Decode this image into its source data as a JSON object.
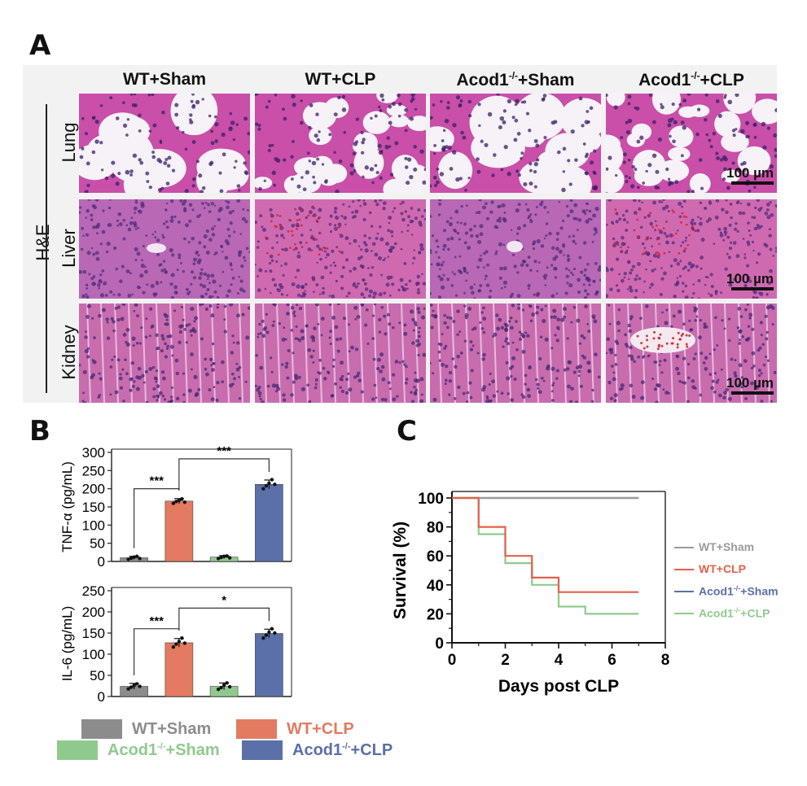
{
  "panels": {
    "a": "A",
    "b": "B",
    "c": "C"
  },
  "panel_a": {
    "stain_label": "H&E",
    "columns": [
      {
        "pre": "WT+Sham",
        "sup": "",
        "post": ""
      },
      {
        "pre": "WT+CLP",
        "sup": "",
        "post": ""
      },
      {
        "pre": "Acod1",
        "sup": "-/-",
        "post": "+Sham"
      },
      {
        "pre": "Acod1",
        "sup": "-/-",
        "post": "+CLP"
      }
    ],
    "rows": [
      "Lung",
      "Liver",
      "Kidney"
    ],
    "scale_bar_label": "100 µm"
  },
  "panel_b_legend": [
    {
      "pre": "WT+Sham",
      "sup": "",
      "post": "",
      "color": "#8c8c8c",
      "text_color": "#8c8c8c"
    },
    {
      "pre": "WT+CLP",
      "sup": "",
      "post": "",
      "color": "#e27b5f",
      "text_color": "#e27b5f"
    },
    {
      "pre": "Acod1",
      "sup": "-/-",
      "post": "+Sham",
      "color": "#8fca8c",
      "text_color": "#8fca8c"
    },
    {
      "pre": "Acod1",
      "sup": "-/-",
      "post": "+CLP",
      "color": "#5b6fa8",
      "text_color": "#5b6fa8"
    }
  ],
  "chart_data": [
    {
      "type": "bar",
      "ylabel": "TNF-α (pg/mL)",
      "categories": [
        "WT+Sham",
        "WT+CLP",
        "Acod1-/-+Sham",
        "Acod1-/-+CLP"
      ],
      "values": [
        10,
        166,
        12,
        212
      ],
      "errors": [
        4,
        7,
        4,
        12
      ],
      "points": [
        [
          6,
          9,
          12,
          14,
          8
        ],
        [
          160,
          165,
          168,
          172,
          163
        ],
        [
          8,
          11,
          14,
          15,
          10
        ],
        [
          200,
          208,
          215,
          225,
          212
        ]
      ],
      "colors": [
        "#8c8c8c",
        "#e27b5f",
        "#8fca8c",
        "#5b6fa8"
      ],
      "ylim": [
        0,
        300
      ],
      "yticks": [
        0,
        50,
        100,
        150,
        200,
        250,
        300
      ],
      "significance": [
        {
          "from": 0,
          "to": 1,
          "label": "***"
        },
        {
          "from": 1,
          "to": 3,
          "label": "***"
        }
      ]
    },
    {
      "type": "bar",
      "ylabel": "IL-6 (pg/mL)",
      "categories": [
        "WT+Sham",
        "WT+CLP",
        "Acod1-/-+Sham",
        "Acod1-/-+CLP"
      ],
      "values": [
        24,
        127,
        24,
        149
      ],
      "errors": [
        7,
        10,
        8,
        10
      ],
      "points": [
        [
          18,
          22,
          26,
          30,
          24
        ],
        [
          117,
          124,
          130,
          138,
          126
        ],
        [
          17,
          21,
          27,
          32,
          23
        ],
        [
          138,
          145,
          152,
          160,
          150
        ]
      ],
      "colors": [
        "#8c8c8c",
        "#e27b5f",
        "#8fca8c",
        "#5b6fa8"
      ],
      "ylim": [
        0,
        250
      ],
      "yticks": [
        0,
        50,
        100,
        150,
        200,
        250
      ],
      "significance": [
        {
          "from": 0,
          "to": 1,
          "label": "***"
        },
        {
          "from": 1,
          "to": 3,
          "label": "*"
        }
      ]
    },
    {
      "type": "line",
      "step": true,
      "xlabel": "Days post CLP",
      "ylabel": "Survival (%)",
      "xlim": [
        0,
        8
      ],
      "ylim": [
        0,
        100
      ],
      "xticks": [
        0,
        2,
        4,
        6,
        8
      ],
      "yticks": [
        0,
        20,
        40,
        60,
        80,
        100
      ],
      "series": [
        {
          "name": "WT+Sham",
          "color": "#9a9a9a",
          "x": [
            0,
            7
          ],
          "y": [
            100,
            100
          ]
        },
        {
          "name": "WT+CLP",
          "color": "#e2614a",
          "x": [
            0,
            1,
            1,
            2,
            2,
            3,
            3,
            4,
            4,
            7
          ],
          "y": [
            100,
            100,
            80,
            80,
            60,
            60,
            45,
            45,
            35,
            35
          ]
        },
        {
          "name": "Acod1-/-+Sham",
          "color": "#5b6fa8",
          "x": [
            0,
            7
          ],
          "y": [
            100,
            100
          ]
        },
        {
          "name": "Acod1-/-+CLP",
          "color": "#8fca8c",
          "x": [
            0,
            1,
            1,
            2,
            2,
            3,
            3,
            4,
            4,
            5,
            5,
            7
          ],
          "y": [
            100,
            100,
            75,
            75,
            55,
            55,
            40,
            40,
            25,
            25,
            20,
            20
          ]
        }
      ]
    }
  ],
  "panel_c_legend": [
    {
      "pre": "WT+Sham",
      "sup": "",
      "post": "",
      "color": "#9a9a9a"
    },
    {
      "pre": "WT+CLP",
      "sup": "",
      "post": "",
      "color": "#e2614a"
    },
    {
      "pre": "Acod1",
      "sup": "-/-",
      "post": "+Sham",
      "color": "#5b6fa8"
    },
    {
      "pre": "Acod1",
      "sup": "-/-",
      "post": "+CLP",
      "color": "#8fca8c"
    }
  ]
}
